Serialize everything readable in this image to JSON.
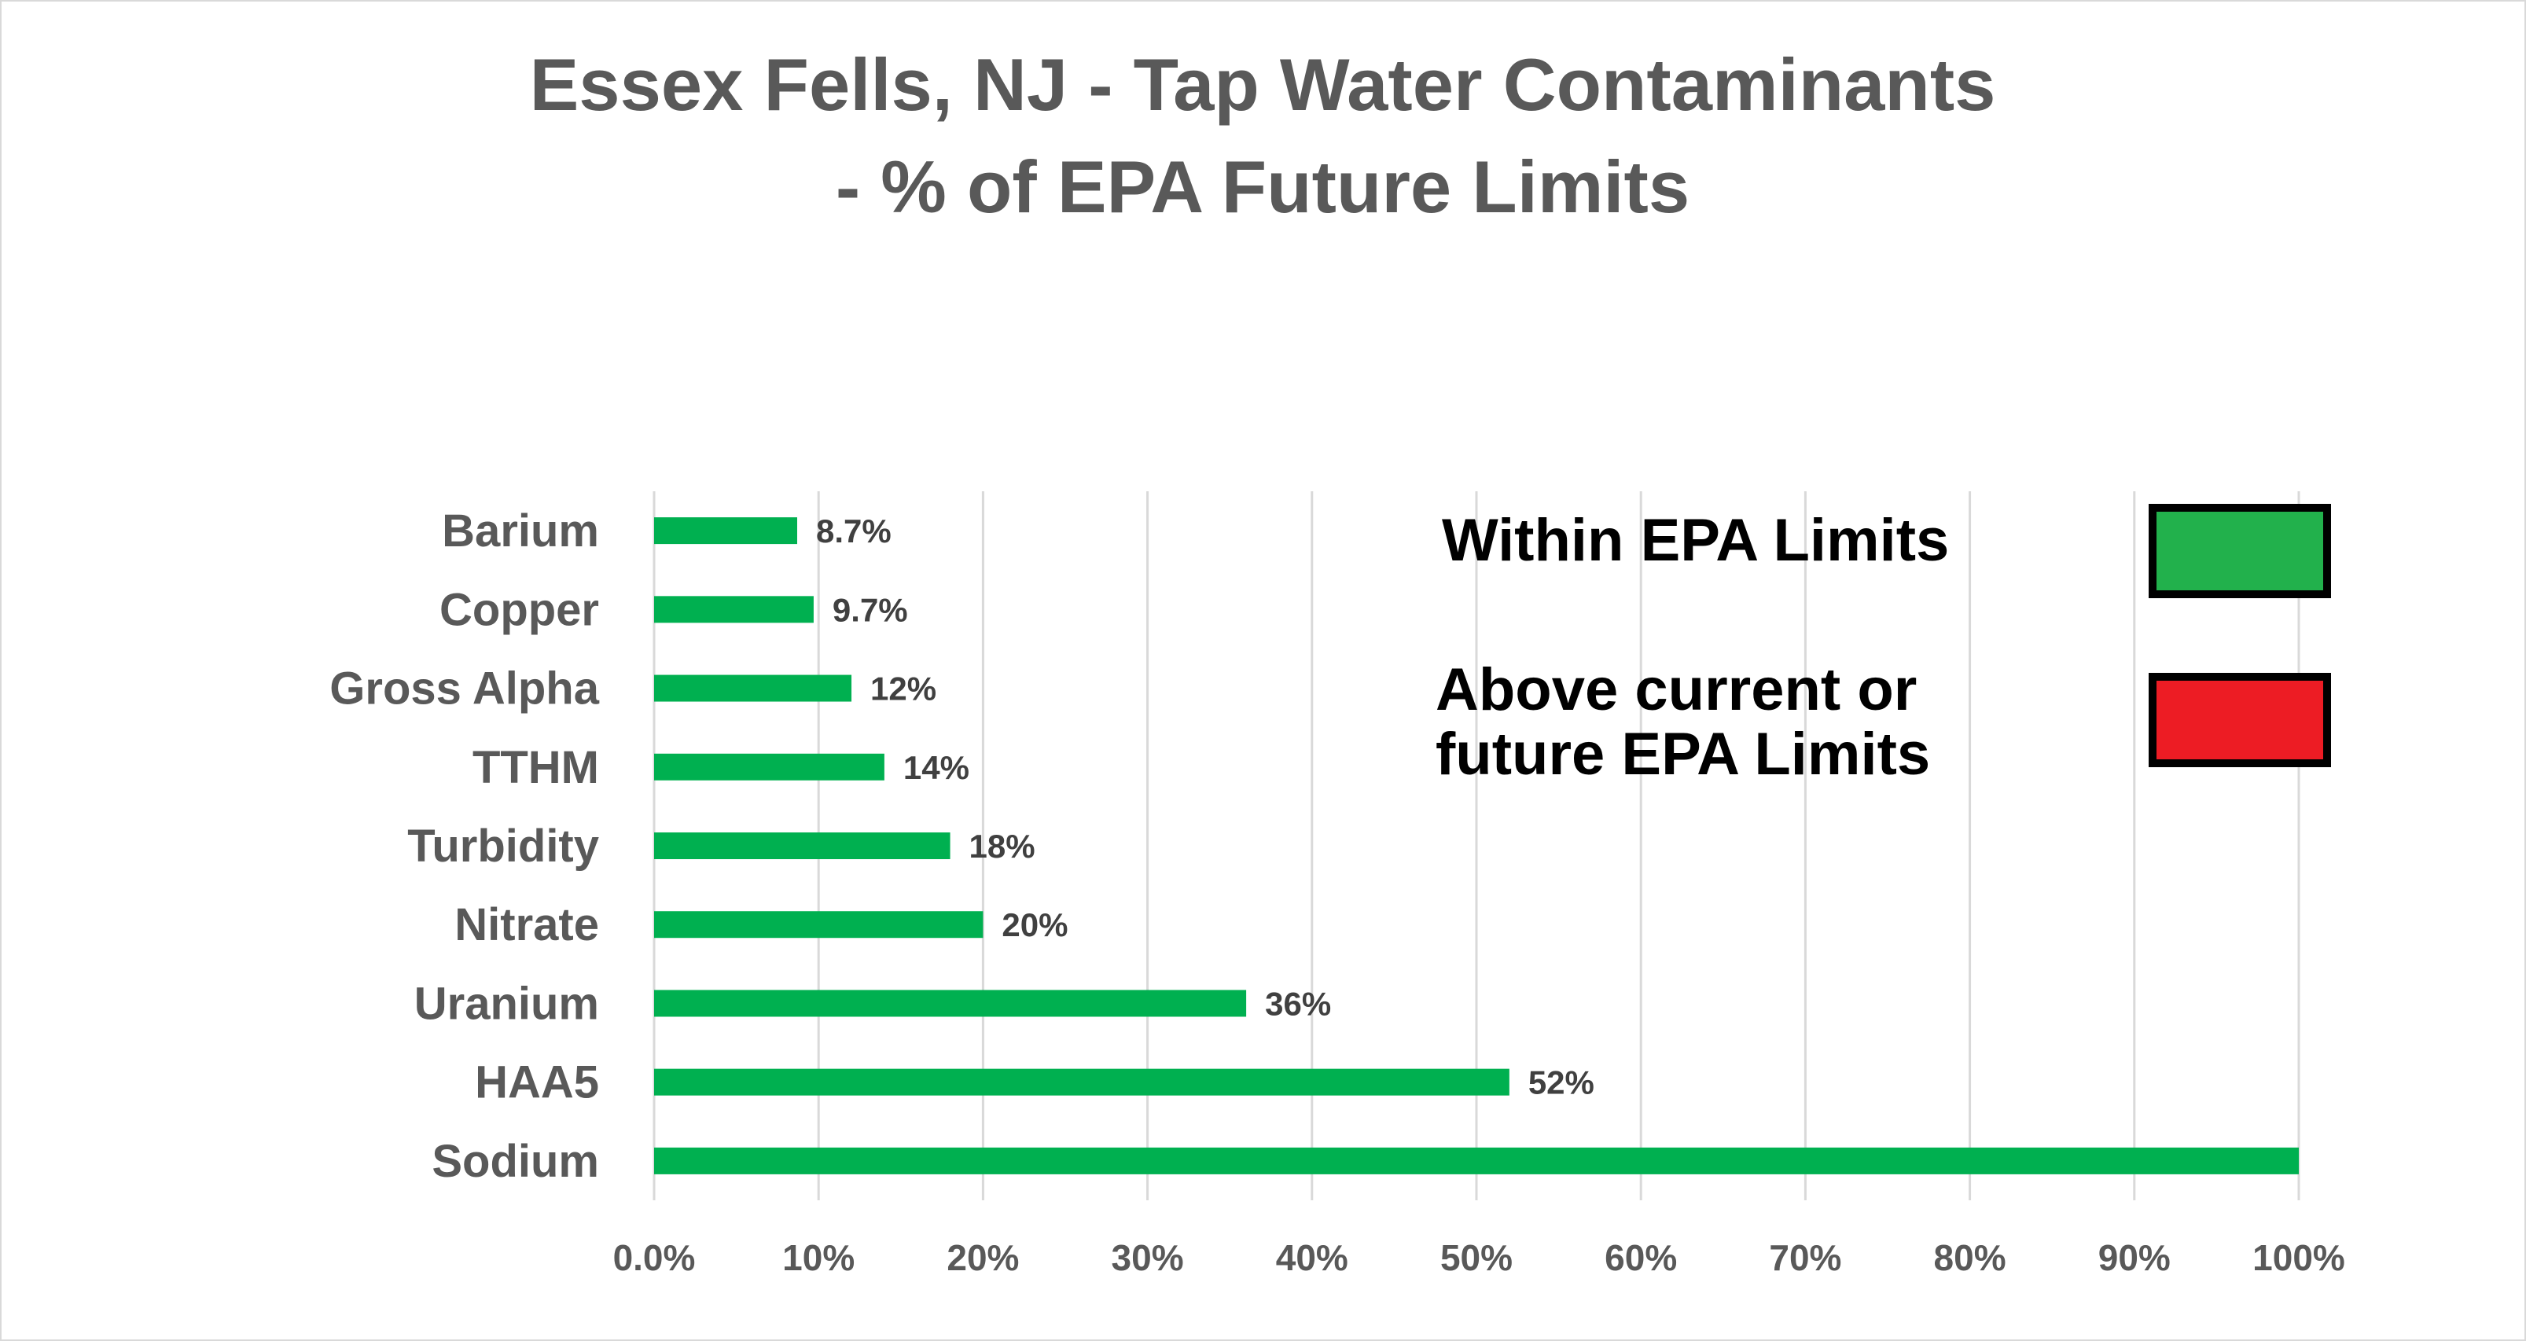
{
  "chart_data": {
    "type": "bar",
    "orientation": "horizontal",
    "title_lines": [
      "Essex Fells, NJ - Tap Water Contaminants",
      "- % of EPA Future Limits"
    ],
    "categories": [
      "Barium",
      "Copper",
      "Gross Alpha",
      "TTHM",
      "Turbidity",
      "Nitrate",
      "Uranium",
      "HAA5",
      "Sodium"
    ],
    "values": [
      8.7,
      9.7,
      12,
      14,
      18,
      20,
      36,
      52,
      100
    ],
    "data_labels": [
      "8.7%",
      "9.7%",
      "12%",
      "14%",
      "18%",
      "20%",
      "36%",
      "52%",
      ""
    ],
    "xlim": [
      0,
      100
    ],
    "xticks": [
      "0.0%",
      "10%",
      "20%",
      "30%",
      "40%",
      "50%",
      "60%",
      "70%",
      "80%",
      "90%",
      "100%"
    ],
    "grid": true,
    "bar_color": "#00B050",
    "legend": {
      "placement": "top-right",
      "items": [
        {
          "lines": [
            "Within  EPA Limits"
          ],
          "color": "#22B14C"
        },
        {
          "lines": [
            "Above current or",
            "future EPA Limits"
          ],
          "color": "#ED1C24"
        }
      ]
    }
  }
}
